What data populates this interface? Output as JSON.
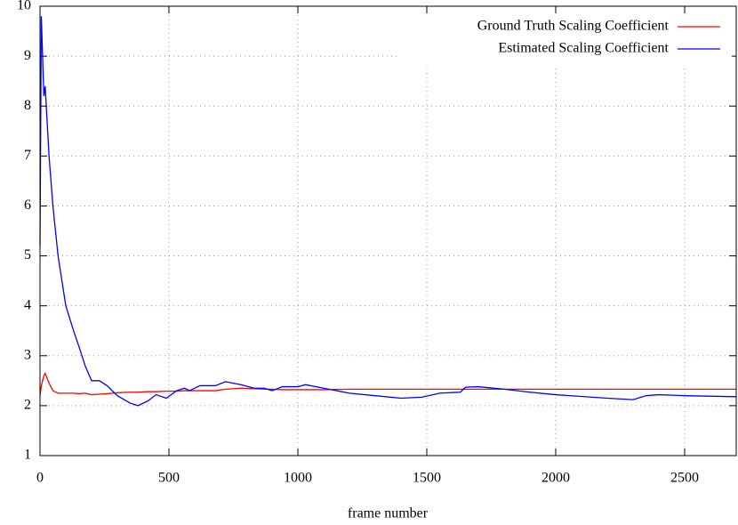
{
  "chart_data": {
    "type": "line",
    "xlabel": "frame number",
    "x": [
      0,
      5,
      15,
      20,
      35,
      50,
      70,
      100,
      130,
      150,
      175,
      200,
      230,
      260,
      300,
      350,
      380,
      420,
      450,
      490,
      530,
      560,
      580,
      620,
      680,
      720,
      780,
      830,
      870,
      900,
      940,
      1000,
      1030,
      1100,
      1200,
      1300,
      1400,
      1480,
      1550,
      1630,
      1650,
      1700,
      1800,
      1900,
      2000,
      2200,
      2300,
      2350,
      2400,
      2500,
      2700
    ],
    "series": [
      {
        "name": "Ground Truth Scaling Coefficient",
        "color": "#ff0000",
        "values": [
          2.2,
          2.4,
          2.6,
          2.65,
          2.45,
          2.3,
          2.25,
          2.25,
          2.25,
          2.24,
          2.25,
          2.22,
          2.23,
          2.24,
          2.26,
          2.27,
          2.27,
          2.28,
          2.28,
          2.29,
          2.29,
          2.3,
          2.3,
          2.3,
          2.3,
          2.33,
          2.35,
          2.34,
          2.33,
          2.33,
          2.32,
          2.32,
          2.32,
          2.32,
          2.33,
          2.33,
          2.33,
          2.33,
          2.33,
          2.33,
          2.33,
          2.33,
          2.33,
          2.33,
          2.33,
          2.33,
          2.33,
          2.33,
          2.33,
          2.33,
          2.33
        ]
      },
      {
        "name": "Estimated Scaling Coefficient",
        "color": "#0000ff",
        "values": [
          5.2,
          9.8,
          8.2,
          8.4,
          7,
          6,
          5,
          4,
          3.5,
          3.2,
          2.8,
          2.5,
          2.5,
          2.4,
          2.2,
          2.05,
          2.0,
          2.1,
          2.22,
          2.15,
          2.3,
          2.35,
          2.3,
          2.4,
          2.4,
          2.48,
          2.42,
          2.35,
          2.35,
          2.3,
          2.38,
          2.38,
          2.42,
          2.35,
          2.25,
          2.2,
          2.15,
          2.17,
          2.25,
          2.27,
          2.37,
          2.38,
          2.33,
          2.27,
          2.22,
          2.15,
          2.12,
          2.2,
          2.22,
          2.2,
          2.18
        ]
      }
    ],
    "xlim": [
      0,
      2700
    ],
    "xticks": [
      0,
      500,
      1000,
      1500,
      2000,
      2500
    ],
    "ylim": [
      1,
      10
    ],
    "yticks": [
      1,
      2,
      3,
      4,
      5,
      6,
      7,
      8,
      9,
      10
    ],
    "grid": true,
    "legend": "top-right"
  }
}
